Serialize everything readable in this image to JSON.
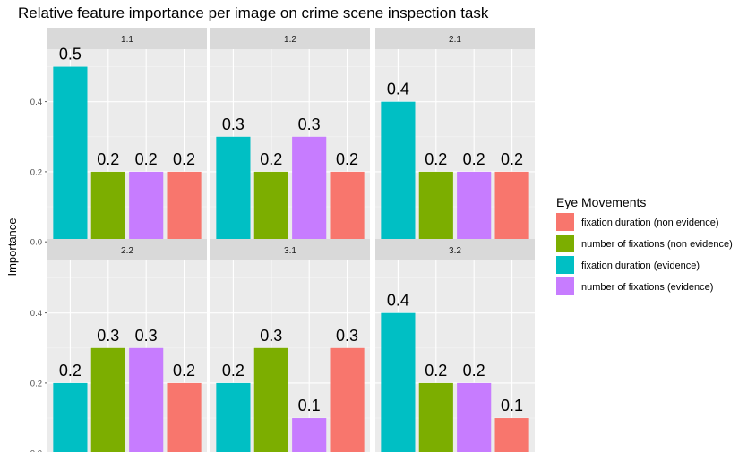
{
  "chart_data": {
    "type": "bar",
    "title": "Relative feature importance per image on crime scene inspection task",
    "xlabel": "",
    "ylabel": "Importance",
    "ylim": [
      0,
      0.55
    ],
    "yticks": [
      "0.0",
      "0.2",
      "0.4"
    ],
    "grid": true,
    "legend": {
      "title": "Eye Movements",
      "position": "right",
      "entries": [
        {
          "label": "fixation duration (non evidence)",
          "color": "#F8766D"
        },
        {
          "label": "number of fixations (non evidence)",
          "color": "#7CAE00"
        },
        {
          "label": "fixation duration (evidence)",
          "color": "#00BFC4"
        },
        {
          "label": "number of fixations (evidence)",
          "color": "#C77CFF"
        }
      ]
    },
    "series_colors": [
      "#00BFC4",
      "#7CAE00",
      "#C77CFF",
      "#F8766D"
    ],
    "panels": [
      {
        "label": "1.1",
        "values": [
          0.5,
          0.2,
          0.2,
          0.2
        ],
        "labels": [
          "0.5",
          "0.2",
          "0.2",
          "0.2"
        ]
      },
      {
        "label": "1.2",
        "values": [
          0.3,
          0.2,
          0.3,
          0.2
        ],
        "labels": [
          "0.3",
          "0.2",
          "0.3",
          "0.2"
        ]
      },
      {
        "label": "2.1",
        "values": [
          0.4,
          0.2,
          0.2,
          0.2
        ],
        "labels": [
          "0.4",
          "0.2",
          "0.2",
          "0.2"
        ]
      },
      {
        "label": "2.2",
        "values": [
          0.2,
          0.3,
          0.3,
          0.2
        ],
        "labels": [
          "0.2",
          "0.3",
          "0.3",
          "0.2"
        ]
      },
      {
        "label": "3.1",
        "values": [
          0.2,
          0.3,
          0.1,
          0.3
        ],
        "labels": [
          "0.2",
          "0.3",
          "0.1",
          "0.3"
        ]
      },
      {
        "label": "3.2",
        "values": [
          0.4,
          0.2,
          0.2,
          0.1
        ],
        "labels": [
          "0.4",
          "0.2",
          "0.2",
          "0.1"
        ]
      }
    ]
  }
}
